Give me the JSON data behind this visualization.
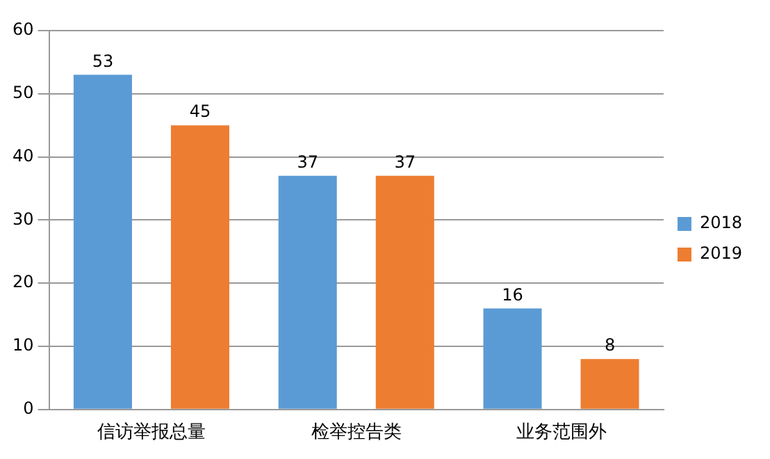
{
  "chart_data": {
    "type": "bar",
    "categories": [
      "信访举报总量",
      "检举控告类",
      "业务范围外"
    ],
    "series": [
      {
        "name": "2018",
        "color": "#5b9bd5",
        "values": [
          53,
          37,
          16
        ]
      },
      {
        "name": "2019",
        "color": "#ed7d31",
        "values": [
          45,
          37,
          8
        ]
      }
    ],
    "ylim": [
      0,
      60
    ],
    "yticks": [
      0,
      10,
      20,
      30,
      40,
      50,
      60
    ],
    "grid": "y",
    "legend": "right",
    "data_labels": true
  }
}
